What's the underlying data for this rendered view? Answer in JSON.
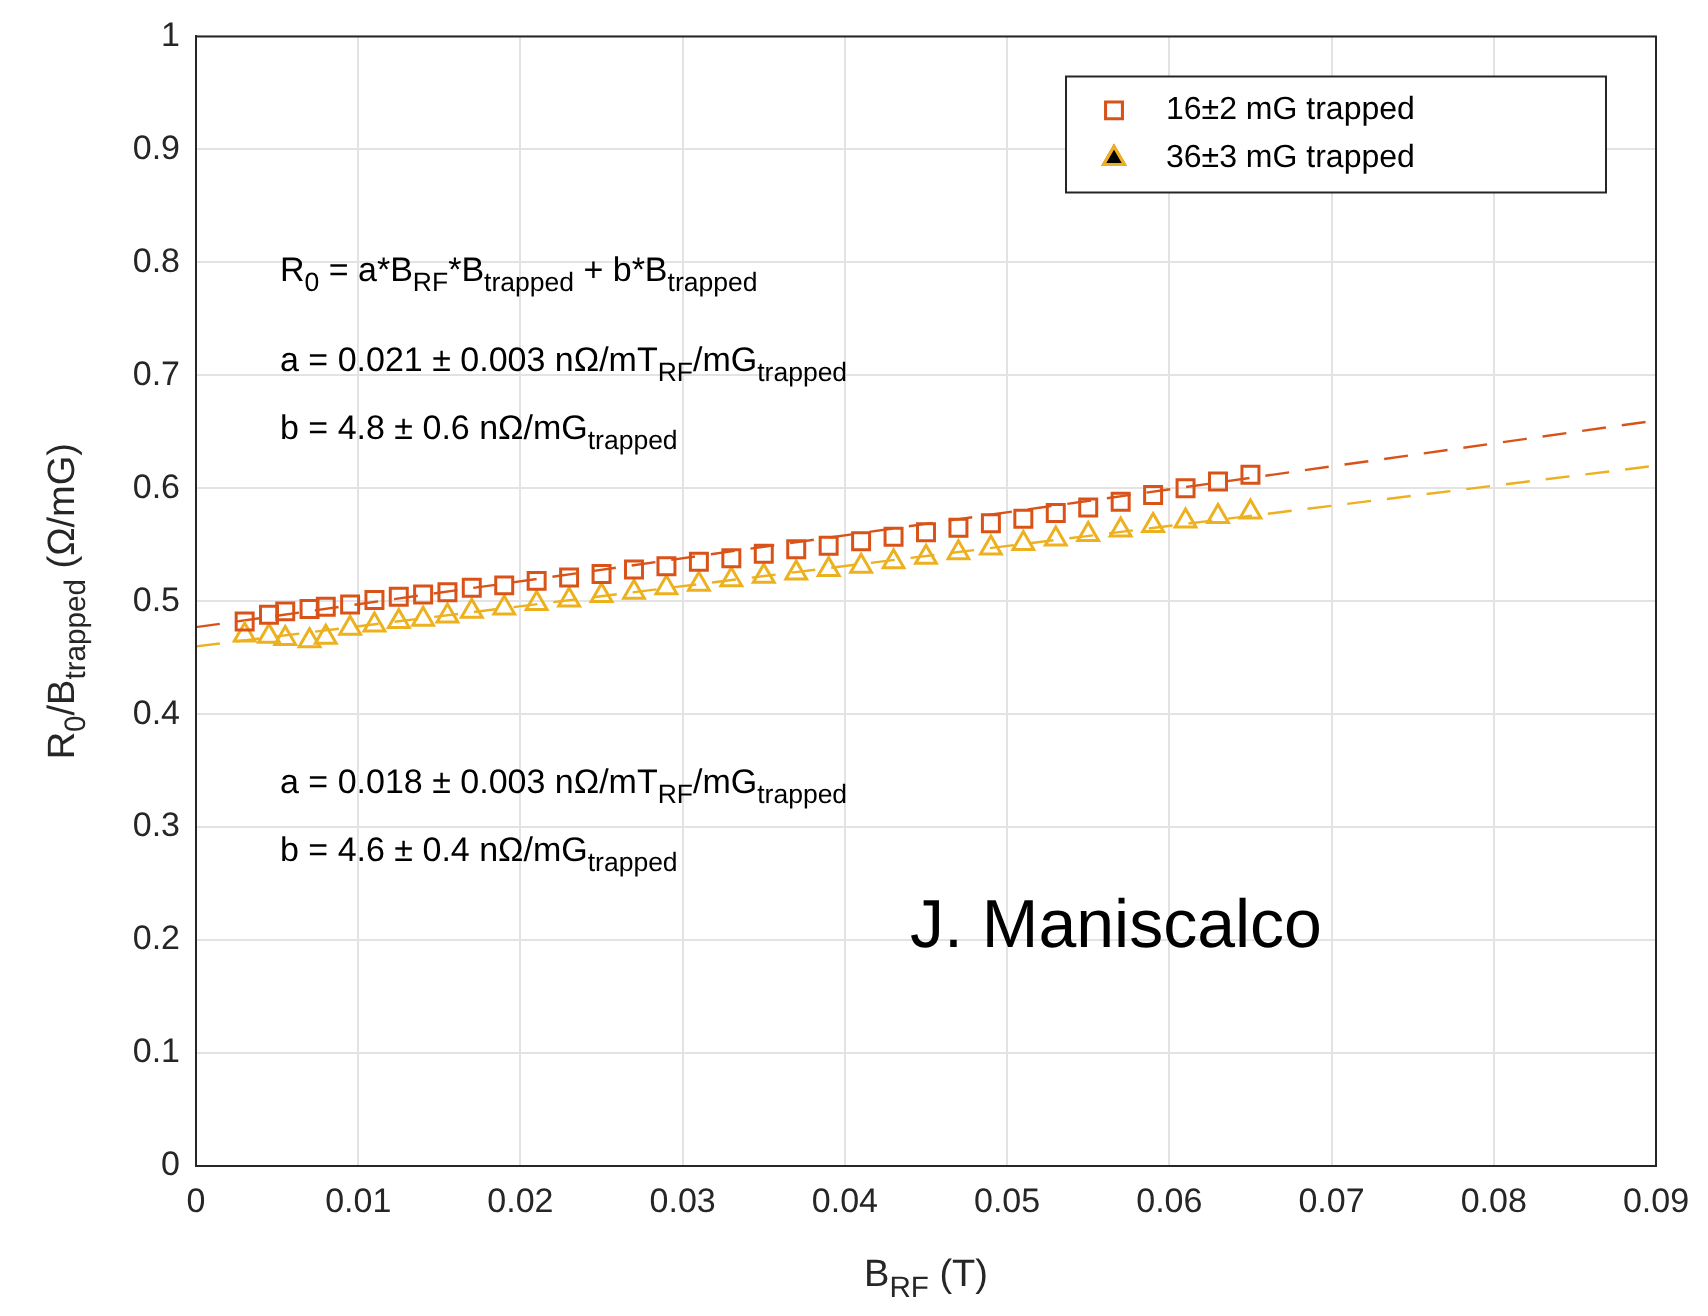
{
  "chart_data": {
    "type": "scatter",
    "xlabel": "B$_{RF}$ (T)",
    "ylabel": "R$_{0}$/B$_{trapped}$ (Ω/mG)",
    "xlim": [
      0,
      0.09
    ],
    "xticks": [
      0,
      0.01,
      0.02,
      0.03,
      0.04,
      0.05,
      0.06,
      0.07,
      0.08,
      0.09
    ],
    "ylim": [
      0,
      1
    ],
    "yticks": [
      0,
      0.1,
      0.2,
      0.3,
      0.4,
      0.5,
      0.6,
      0.7,
      0.8,
      0.9,
      1
    ],
    "grid": true,
    "legend": "top right",
    "series": [
      {
        "name": "16±2 mG trapped",
        "color": "#d95319",
        "marker": "square",
        "x": [
          0.003,
          0.0045,
          0.0055,
          0.007,
          0.008,
          0.0095,
          0.011,
          0.0125,
          0.014,
          0.0155,
          0.017,
          0.019,
          0.021,
          0.023,
          0.025,
          0.027,
          0.029,
          0.031,
          0.033,
          0.035,
          0.037,
          0.039,
          0.041,
          0.043,
          0.045,
          0.047,
          0.049,
          0.051,
          0.053,
          0.055,
          0.057,
          0.059,
          0.061,
          0.063,
          0.065
        ],
        "values": [
          0.482,
          0.488,
          0.491,
          0.493,
          0.495,
          0.497,
          0.501,
          0.504,
          0.506,
          0.508,
          0.512,
          0.514,
          0.518,
          0.521,
          0.524,
          0.528,
          0.531,
          0.535,
          0.538,
          0.542,
          0.546,
          0.549,
          0.553,
          0.557,
          0.561,
          0.565,
          0.569,
          0.573,
          0.578,
          0.583,
          0.588,
          0.594,
          0.6,
          0.606,
          0.612
        ]
      },
      {
        "name": "36±3 mG trapped",
        "color": "#edb120",
        "marker": "triangle",
        "x": [
          0.003,
          0.0045,
          0.0055,
          0.007,
          0.008,
          0.0095,
          0.011,
          0.0125,
          0.014,
          0.0155,
          0.017,
          0.019,
          0.021,
          0.023,
          0.025,
          0.027,
          0.029,
          0.031,
          0.033,
          0.035,
          0.037,
          0.039,
          0.041,
          0.043,
          0.045,
          0.047,
          0.049,
          0.051,
          0.053,
          0.055,
          0.057,
          0.059,
          0.061,
          0.063,
          0.065
        ],
        "values": [
          0.47,
          0.469,
          0.467,
          0.465,
          0.468,
          0.476,
          0.479,
          0.482,
          0.484,
          0.487,
          0.491,
          0.494,
          0.498,
          0.501,
          0.505,
          0.508,
          0.512,
          0.515,
          0.519,
          0.522,
          0.525,
          0.528,
          0.531,
          0.535,
          0.539,
          0.543,
          0.547,
          0.551,
          0.555,
          0.559,
          0.563,
          0.567,
          0.571,
          0.575,
          0.579
        ]
      },
      {
        "type": "line",
        "color": "#d95319",
        "marker": "none",
        "line_style": "dashed",
        "x": [
          0,
          0.09
        ],
        "values": [
          0.477,
          0.66
        ]
      },
      {
        "type": "line",
        "color": "#edb120",
        "marker": "none",
        "line_style": "dashed",
        "x": [
          0,
          0.09
        ],
        "values": [
          0.46,
          0.62
        ]
      }
    ],
    "annotations": [
      "R$_{0}$ = a*B$_{RF}$*B$_{trapped}$ + b*B$_{trapped}$",
      "a = 0.021 ± 0.003 nΩ/mT$_{RF}$/mG$_{trapped}$",
      "b = 4.8 ± 0.6 nΩ/mG$_{trapped}$",
      "a = 0.018 ± 0.003 nΩ/mT$_{RF}$/mG$_{trapped}$",
      "b = 4.6 ± 0.4 nΩ/mG$_{trapped}$",
      "J. Maniscalco"
    ]
  }
}
